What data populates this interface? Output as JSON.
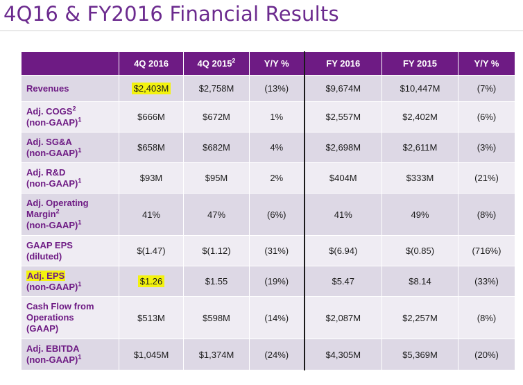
{
  "title": "4Q16 & FY2016 Financial Results",
  "columns": [
    "4Q 2016",
    "4Q 2015²",
    "Y/Y %",
    "FY 2016",
    "FY 2015",
    "Y/Y %"
  ],
  "rows": [
    {
      "label": [
        "Revenues"
      ],
      "values": [
        "$2,403M",
        "$2,758M",
        "(13%)",
        "$9,674M",
        "$10,447M",
        "(7%)"
      ]
    },
    {
      "label": [
        "Adj. COGS²",
        "(non-GAAP)¹"
      ],
      "values": [
        "$666M",
        "$672M",
        "1%",
        "$2,557M",
        "$2,402M",
        "(6%)"
      ]
    },
    {
      "label": [
        "Adj. SG&A",
        "(non-GAAP)¹"
      ],
      "values": [
        "$658M",
        "$682M",
        "4%",
        "$2,698M",
        "$2,611M",
        "(3%)"
      ]
    },
    {
      "label": [
        "Adj. R&D",
        "(non-GAAP)¹"
      ],
      "values": [
        "$93M",
        "$95M",
        "2%",
        "$404M",
        "$333M",
        "(21%)"
      ]
    },
    {
      "label": [
        "Adj. Operating",
        "Margin²",
        "(non-GAAP)¹"
      ],
      "values": [
        "41%",
        "47%",
        "(6%)",
        "41%",
        "49%",
        "(8%)"
      ]
    },
    {
      "label": [
        "GAAP EPS",
        "(diluted)"
      ],
      "values": [
        "$(1.47)",
        "$(1.12)",
        "(31%)",
        "$(6.94)",
        "$(0.85)",
        "(716%)"
      ]
    },
    {
      "label": [
        "Adj. EPS",
        "(non-GAAP)¹"
      ],
      "values": [
        "$1.26",
        "$1.55",
        "(19%)",
        "$5.47",
        "$8.14",
        "(33%)"
      ]
    },
    {
      "label": [
        "Cash Flow from",
        "Operations",
        "(GAAP)"
      ],
      "values": [
        "$513M",
        "$598M",
        "(14%)",
        "$2,087M",
        "$2,257M",
        "(8%)"
      ]
    },
    {
      "label": [
        "Adj. EBITDA",
        "(non-GAAP)¹"
      ],
      "values": [
        "$1,045M",
        "$1,374M",
        "(24%)",
        "$4,305M",
        "$5,369M",
        "(20%)"
      ]
    }
  ],
  "highlights": [
    {
      "row": 0,
      "col": 0,
      "color": "#f3f20e"
    },
    {
      "row": 6,
      "col": 0,
      "color": "#f3f20e"
    },
    {
      "row": 6,
      "lab": true,
      "color": "#f3f20e"
    }
  ],
  "colors": {
    "header_bg": "#6e1b84",
    "title": "#6b2a8e",
    "row_dark": "#ddd8e5",
    "row_light": "#efecf3",
    "highlight": "#f3f20e"
  }
}
